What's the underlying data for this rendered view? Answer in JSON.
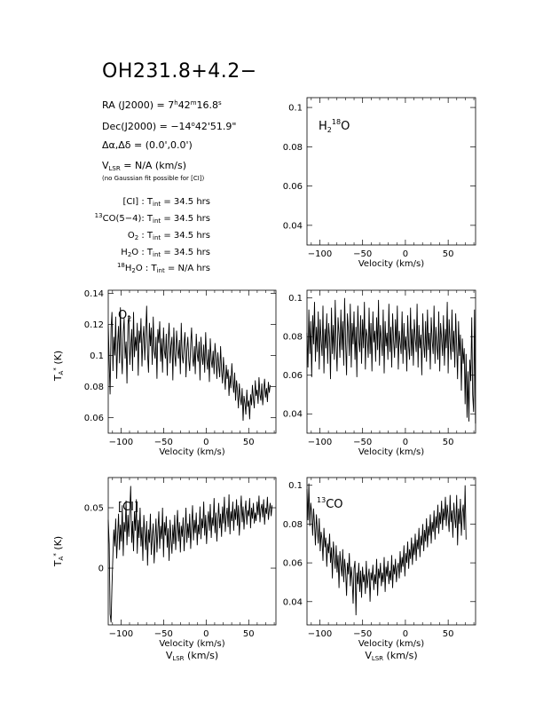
{
  "title": "OH231.8+4.2−",
  "info": {
    "ra_label": "RA (J2000) = ",
    "ra_h": "7",
    "ra_m": "42",
    "ra_s": "16.8",
    "dec_label": "Dec(J2000) = ",
    "dec_d": "−14",
    "dec_m": "42",
    "dec_s": "51.9",
    "offset": "Δα,Δδ = (0.0',0.0')",
    "vlsr_pre": "V",
    "vlsr_sub": "LSR",
    "vlsr_post": " = N/A  (km/s)",
    "note": "(no Gaussian fit possible for [CI])",
    "tint_rows": [
      {
        "pre": "",
        "sup": "",
        "name": "[CI]",
        "sub": "",
        "post": " : ",
        "val": " = 34.5 hrs"
      },
      {
        "pre": "",
        "sup": "13",
        "name": "CO(5−4)",
        "sub": "",
        "post": ": ",
        "val": " = 34.5 hrs"
      },
      {
        "pre": "",
        "sup": "",
        "name": "O",
        "sub": "2",
        "post": " : ",
        "val": " = 34.5 hrs"
      },
      {
        "pre": "",
        "sup": "",
        "name": "H",
        "sub": "2",
        "post": "O : ",
        "val": " = 34.5 hrs"
      },
      {
        "pre": "",
        "sup": "18",
        "name": "H",
        "sub": "2",
        "post": "O : ",
        "val": " = N/A hrs"
      }
    ],
    "tint_T": "T",
    "tint_sub": "int"
  },
  "labels": {
    "velocity": "Velocity (km/s)",
    "vlsr_axis": "V",
    "vlsr_axis_sub": "LSR",
    "vlsr_axis_post": " (km/s)",
    "ta": "T",
    "ta_sub": "A",
    "ta_sup": "*",
    "ta_post": " (K)"
  },
  "chart_data": [
    {
      "id": "h218o",
      "type": "line",
      "label": "H218O",
      "xlim": [
        -115,
        82
      ],
      "ylim": [
        0.03,
        0.105
      ],
      "xticks": [
        -100,
        -50,
        0,
        50
      ],
      "yticks": [
        0.04,
        0.06,
        0.08,
        0.1
      ],
      "ytick_labels": [
        "0.04",
        "0.06",
        "0.08",
        "0.1"
      ],
      "series": []
    },
    {
      "id": "o2",
      "type": "line",
      "label": "O2",
      "xlim": [
        -115,
        82
      ],
      "ylim": [
        0.05,
        0.142
      ],
      "xticks": [
        -100,
        -50,
        0,
        50
      ],
      "yticks": [
        0.06,
        0.08,
        0.1,
        0.12,
        0.14
      ],
      "ytick_labels": [
        "0.06",
        "0.08",
        "0.1",
        "0.12",
        "0.14"
      ],
      "series": [
        {
          "x0": -115,
          "dx": 1.1,
          "y": [
            0.12,
            0.095,
            0.075,
            0.118,
            0.128,
            0.09,
            0.112,
            0.1,
            0.125,
            0.085,
            0.108,
            0.119,
            0.095,
            0.131,
            0.101,
            0.088,
            0.115,
            0.124,
            0.098,
            0.109,
            0.082,
            0.12,
            0.126,
            0.094,
            0.105,
            0.117,
            0.09,
            0.128,
            0.099,
            0.112,
            0.103,
            0.121,
            0.087,
            0.116,
            0.108,
            0.124,
            0.093,
            0.11,
            0.119,
            0.097,
            0.114,
            0.132,
            0.101,
            0.089,
            0.121,
            0.106,
            0.118,
            0.094,
            0.125,
            0.103,
            0.098,
            0.112,
            0.085,
            0.117,
            0.108,
            0.122,
            0.096,
            0.111,
            0.089,
            0.118,
            0.103,
            0.098,
            0.114,
            0.087,
            0.109,
            0.121,
            0.095,
            0.106,
            0.112,
            0.084,
            0.118,
            0.101,
            0.093,
            0.116,
            0.104,
            0.098,
            0.11,
            0.088,
            0.121,
            0.1,
            0.095,
            0.108,
            0.115,
            0.086,
            0.103,
            0.112,
            0.097,
            0.09,
            0.107,
            0.118,
            0.099,
            0.093,
            0.106,
            0.088,
            0.114,
            0.101,
            0.096,
            0.109,
            0.084,
            0.112,
            0.1,
            0.094,
            0.107,
            0.089,
            0.115,
            0.098,
            0.091,
            0.104,
            0.083,
            0.111,
            0.097,
            0.092,
            0.103,
            0.088,
            0.108,
            0.099,
            0.085,
            0.102,
            0.094,
            0.086,
            0.106,
            0.091,
            0.082,
            0.099,
            0.088,
            0.078,
            0.094,
            0.085,
            0.091,
            0.074,
            0.087,
            0.079,
            0.095,
            0.083,
            0.076,
            0.089,
            0.071,
            0.084,
            0.078,
            0.066,
            0.082,
            0.073,
            0.068,
            0.079,
            0.058,
            0.074,
            0.069,
            0.062,
            0.078,
            0.067,
            0.071,
            0.059,
            0.075,
            0.068,
            0.081,
            0.072,
            0.066,
            0.084,
            0.074,
            0.078,
            0.069,
            0.086,
            0.075,
            0.071,
            0.082,
            0.068,
            0.077,
            0.085,
            0.073,
            0.079,
            0.07,
            0.083,
            0.076,
            0.081
          ]
        }
      ]
    },
    {
      "id": "h2o",
      "type": "line",
      "label": "H2O",
      "xlim": [
        -115,
        82
      ],
      "ylim": [
        0.03,
        0.104
      ],
      "xticks": [
        -100,
        -50,
        0,
        50
      ],
      "yticks": [
        0.04,
        0.06,
        0.08,
        0.1
      ],
      "ytick_labels": [
        "0.04",
        "0.06",
        "0.08",
        "0.1"
      ],
      "series": [
        {
          "x0": -115,
          "dx": 1.1,
          "y": [
            0.082,
            0.064,
            0.094,
            0.071,
            0.088,
            0.059,
            0.091,
            0.076,
            0.098,
            0.067,
            0.085,
            0.072,
            0.093,
            0.063,
            0.089,
            0.078,
            0.07,
            0.096,
            0.061,
            0.084,
            0.074,
            0.092,
            0.066,
            0.087,
            0.079,
            0.058,
            0.095,
            0.071,
            0.086,
            0.068,
            0.099,
            0.075,
            0.062,
            0.09,
            0.081,
            0.069,
            0.094,
            0.073,
            0.088,
            0.065,
            0.1,
            0.077,
            0.06,
            0.092,
            0.083,
            0.07,
            0.097,
            0.064,
            0.087,
            0.076,
            0.093,
            0.068,
            0.085,
            0.059,
            0.096,
            0.078,
            0.072,
            0.091,
            0.066,
            0.089,
            0.074,
            0.098,
            0.063,
            0.084,
            0.08,
            0.069,
            0.095,
            0.071,
            0.087,
            0.062,
            0.093,
            0.077,
            0.083,
            0.067,
            0.09,
            0.073,
            0.099,
            0.065,
            0.086,
            0.079,
            0.07,
            0.094,
            0.061,
            0.088,
            0.075,
            0.082,
            0.068,
            0.097,
            0.072,
            0.085,
            0.064,
            0.092,
            0.078,
            0.069,
            0.089,
            0.074,
            0.096,
            0.063,
            0.083,
            0.077,
            0.071,
            0.093,
            0.066,
            0.087,
            0.073,
            0.08,
            0.062,
            0.091,
            0.075,
            0.068,
            0.095,
            0.07,
            0.084,
            0.065,
            0.089,
            0.079,
            0.072,
            0.097,
            0.064,
            0.086,
            0.074,
            0.081,
            0.06,
            0.092,
            0.076,
            0.069,
            0.088,
            0.067,
            0.094,
            0.073,
            0.082,
            0.063,
            0.09,
            0.078,
            0.071,
            0.096,
            0.066,
            0.085,
            0.075,
            0.068,
            0.093,
            0.062,
            0.087,
            0.079,
            0.07,
            0.091,
            0.065,
            0.084,
            0.074,
            0.098,
            0.061,
            0.089,
            0.077,
            0.068,
            0.094,
            0.072,
            0.083,
            0.064,
            0.092,
            0.075,
            0.058,
            0.088,
            0.07,
            0.081,
            0.052,
            0.079,
            0.066,
            0.074,
            0.045,
            0.071,
            0.038,
            0.062,
            0.036,
            0.068,
            0.057,
            0.09,
            0.05,
            0.041,
            0.094,
            0.035
          ]
        }
      ]
    },
    {
      "id": "ci",
      "type": "line",
      "label": "[CI]",
      "xlim": [
        -115,
        82
      ],
      "ylim": [
        -0.047,
        0.075
      ],
      "xticks": [
        -100,
        -50,
        0,
        50
      ],
      "yticks": [
        0,
        0.05
      ],
      "ytick_labels": [
        "0",
        "0.05"
      ],
      "series": [
        {
          "x0": -115,
          "dx": 1.1,
          "y": [
            0.04,
            0.02,
            -0.038,
            -0.045,
            -0.015,
            0.012,
            0.032,
            0.018,
            0.041,
            0.008,
            0.027,
            0.045,
            0.015,
            0.036,
            0.022,
            0.052,
            0.01,
            0.038,
            0.03,
            0.056,
            0.019,
            0.044,
            0.026,
            0.048,
            0.068,
            0.021,
            0.039,
            0.014,
            0.047,
            0.031,
            0.057,
            0.012,
            0.04,
            0.025,
            0.05,
            0.018,
            0.034,
            0.006,
            0.044,
            0.028,
            0.015,
            0.039,
            0.002,
            0.032,
            0.021,
            0.045,
            0.011,
            0.026,
            0.037,
            0.004,
            0.023,
            0.041,
            0.013,
            0.03,
            0.047,
            0.016,
            0.035,
            0.024,
            0.05,
            0.009,
            0.038,
            0.027,
            0.043,
            0.017,
            0.033,
            0.006,
            0.04,
            0.024,
            0.012,
            0.036,
            0.02,
            0.044,
            0.015,
            0.031,
            0.048,
            0.022,
            0.038,
            0.013,
            0.035,
            0.026,
            0.042,
            0.014,
            0.03,
            0.05,
            0.021,
            0.037,
            0.025,
            0.045,
            0.016,
            0.034,
            0.052,
            0.023,
            0.04,
            0.029,
            0.046,
            0.019,
            0.036,
            0.028,
            0.051,
            0.024,
            0.041,
            0.033,
            0.055,
            0.027,
            0.044,
            0.02,
            0.038,
            0.047,
            0.031,
            0.053,
            0.025,
            0.042,
            0.035,
            0.058,
            0.029,
            0.046,
            0.022,
            0.04,
            0.054,
            0.033,
            0.045,
            0.026,
            0.051,
            0.037,
            0.059,
            0.03,
            0.043,
            0.05,
            0.034,
            0.061,
            0.028,
            0.047,
            0.039,
            0.055,
            0.031,
            0.049,
            0.04,
            0.057,
            0.035,
            0.052,
            0.027,
            0.044,
            0.06,
            0.038,
            0.051,
            0.032,
            0.047,
            0.056,
            0.036,
            0.048,
            0.043,
            0.058,
            0.033,
            0.05,
            0.041,
            0.054,
            0.037,
            0.046,
            0.039,
            0.055,
            0.044,
            0.06,
            0.038,
            0.049,
            0.053,
            0.042,
            0.057,
            0.036,
            0.05,
            0.045,
            0.059,
            0.04,
            0.048,
            0.054,
            0.043,
            0.052
          ]
        }
      ]
    },
    {
      "id": "13co",
      "type": "line",
      "label": "13CO",
      "xlim": [
        -115,
        82
      ],
      "ylim": [
        0.028,
        0.104
      ],
      "xticks": [
        -100,
        -50,
        0,
        50
      ],
      "yticks": [
        0.04,
        0.06,
        0.08,
        0.1
      ],
      "ytick_labels": [
        "0.04",
        "0.06",
        "0.08",
        "0.1"
      ],
      "series": [
        {
          "x0": -115,
          "dx": 1.1,
          "y": [
            0.098,
            0.082,
            0.101,
            0.079,
            0.091,
            0.086,
            0.074,
            0.088,
            0.08,
            0.069,
            0.085,
            0.077,
            0.07,
            0.083,
            0.066,
            0.076,
            0.072,
            0.061,
            0.078,
            0.068,
            0.073,
            0.058,
            0.07,
            0.065,
            0.075,
            0.06,
            0.068,
            0.052,
            0.071,
            0.063,
            0.057,
            0.069,
            0.055,
            0.064,
            0.047,
            0.066,
            0.059,
            0.053,
            0.067,
            0.05,
            0.062,
            0.056,
            0.043,
            0.06,
            0.054,
            0.065,
            0.048,
            0.058,
            0.052,
            0.039,
            0.057,
            0.061,
            0.033,
            0.055,
            0.049,
            0.06,
            0.045,
            0.056,
            0.042,
            0.058,
            0.05,
            0.054,
            0.044,
            0.061,
            0.047,
            0.053,
            0.057,
            0.04,
            0.055,
            0.051,
            0.059,
            0.046,
            0.054,
            0.049,
            0.062,
            0.043,
            0.057,
            0.052,
            0.06,
            0.048,
            0.055,
            0.05,
            0.063,
            0.045,
            0.058,
            0.053,
            0.061,
            0.049,
            0.056,
            0.051,
            0.064,
            0.047,
            0.059,
            0.054,
            0.062,
            0.05,
            0.057,
            0.06,
            0.052,
            0.066,
            0.055,
            0.063,
            0.058,
            0.069,
            0.053,
            0.065,
            0.06,
            0.071,
            0.057,
            0.067,
            0.062,
            0.073,
            0.059,
            0.07,
            0.064,
            0.075,
            0.061,
            0.072,
            0.067,
            0.078,
            0.063,
            0.074,
            0.069,
            0.08,
            0.066,
            0.077,
            0.071,
            0.083,
            0.068,
            0.079,
            0.074,
            0.085,
            0.07,
            0.081,
            0.076,
            0.087,
            0.072,
            0.084,
            0.078,
            0.09,
            0.075,
            0.086,
            0.08,
            0.092,
            0.077,
            0.088,
            0.082,
            0.094,
            0.079,
            0.09,
            0.084,
            0.076,
            0.095,
            0.081,
            0.087,
            0.073,
            0.091,
            0.083,
            0.078,
            0.095,
            0.069,
            0.088,
            0.08,
            0.093,
            0.074,
            0.086,
            0.09,
            0.077,
            0.1,
            0.072
          ]
        }
      ]
    }
  ]
}
